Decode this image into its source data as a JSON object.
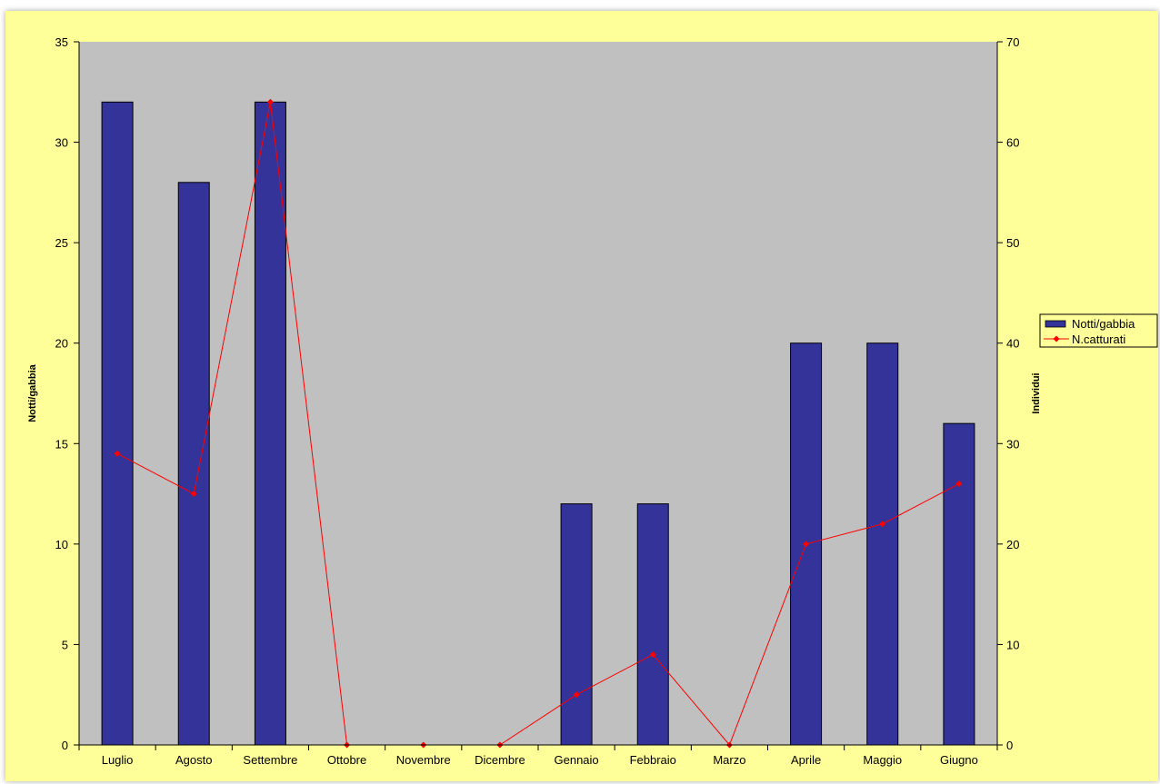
{
  "chart_data": {
    "type": "bar",
    "categories": [
      "Luglio",
      "Agosto",
      "Settembre",
      "Ottobre",
      "Novembre",
      "Dicembre",
      "Gennaio",
      "Febbraio",
      "Marzo",
      "Aprile",
      "Maggio",
      "Giugno"
    ],
    "series": [
      {
        "name": "Notti/gabbia",
        "type": "bar",
        "axis": "left",
        "values": [
          32,
          28,
          32,
          0,
          0,
          0,
          12,
          12,
          0,
          20,
          20,
          16
        ]
      },
      {
        "name": "N.catturati",
        "type": "line",
        "axis": "right",
        "values": [
          29,
          25,
          64,
          0,
          0,
          0,
          5,
          9,
          0,
          20,
          22,
          26
        ]
      }
    ],
    "ylabel": "Notti/gabbia",
    "y2label": "Individui",
    "ylim": [
      0,
      35
    ],
    "y2lim": [
      0,
      70
    ],
    "yticks": [
      "0",
      "5",
      "10",
      "15",
      "20",
      "25",
      "30",
      "35"
    ],
    "y2ticks": [
      "0",
      "10",
      "20",
      "30",
      "40",
      "50",
      "60",
      "70"
    ],
    "grid": false,
    "legend": "right",
    "colors": {
      "bar": "#333399",
      "line": "#ff0000",
      "plot_bg": "#c0c0c0",
      "chart_bg": "#ffff99"
    }
  }
}
